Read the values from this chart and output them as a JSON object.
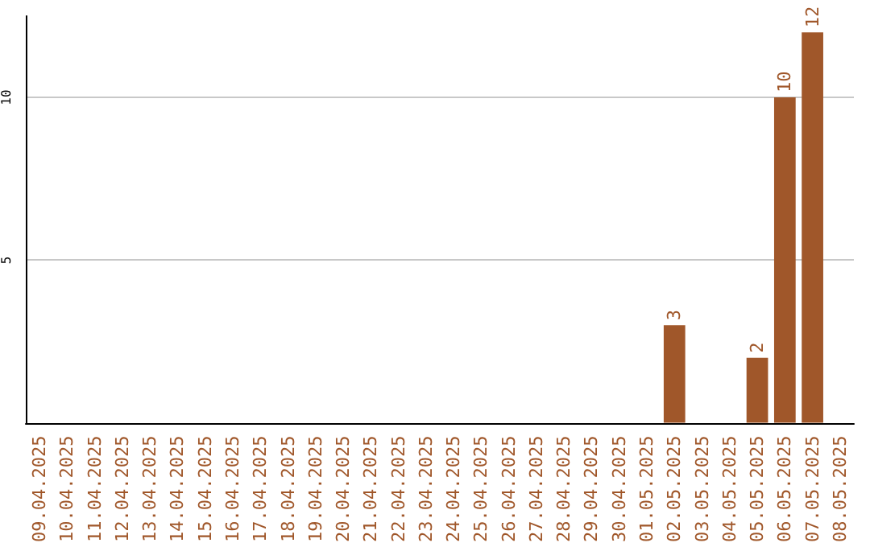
{
  "chart_data": {
    "type": "bar",
    "categories": [
      "09.04.2025",
      "10.04.2025",
      "11.04.2025",
      "12.04.2025",
      "13.04.2025",
      "14.04.2025",
      "15.04.2025",
      "16.04.2025",
      "17.04.2025",
      "18.04.2025",
      "19.04.2025",
      "20.04.2025",
      "21.04.2025",
      "22.04.2025",
      "23.04.2025",
      "24.04.2025",
      "25.04.2025",
      "26.04.2025",
      "27.04.2025",
      "28.04.2025",
      "29.04.2025",
      "30.04.2025",
      "01.05.2025",
      "02.05.2025",
      "03.05.2025",
      "04.05.2025",
      "05.05.2025",
      "06.05.2025",
      "07.05.2025",
      "08.05.2025"
    ],
    "values": [
      0,
      0,
      0,
      0,
      0,
      0,
      0,
      0,
      0,
      0,
      0,
      0,
      0,
      0,
      0,
      0,
      0,
      0,
      0,
      0,
      0,
      0,
      0,
      3,
      0,
      0,
      2,
      10,
      12,
      0
    ],
    "value_labels": [
      null,
      null,
      null,
      null,
      null,
      null,
      null,
      null,
      null,
      null,
      null,
      null,
      null,
      null,
      null,
      null,
      null,
      null,
      null,
      null,
      null,
      null,
      null,
      "3",
      null,
      null,
      "2",
      "10",
      "12",
      null
    ],
    "color": "#a0572a",
    "ylim": [
      0,
      12.5
    ],
    "yticks": [
      {
        "value": 0,
        "label": null
      },
      5,
      10
    ],
    "grid": "y"
  }
}
